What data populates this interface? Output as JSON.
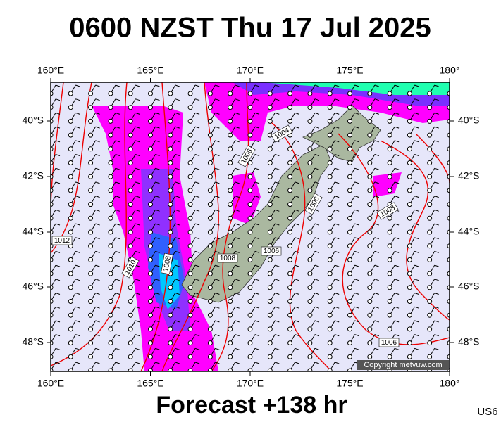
{
  "header": {
    "title": "0600 NZST Thu 17 Jul 2025"
  },
  "map": {
    "lon_labels": [
      "160°E",
      "165°E",
      "170°E",
      "175°E",
      "180°"
    ],
    "lat_labels": [
      "40°S",
      "42°S",
      "44°S",
      "46°S",
      "48°S"
    ],
    "isobar_labels": [
      "1004",
      "1006",
      "1006",
      "1008",
      "1012",
      "1010",
      "1008",
      "1008",
      "1006",
      "1006"
    ],
    "copyright": "Copyright metvuw.com"
  },
  "footer": {
    "forecast": "Forecast +138 hr",
    "code": "US6"
  }
}
